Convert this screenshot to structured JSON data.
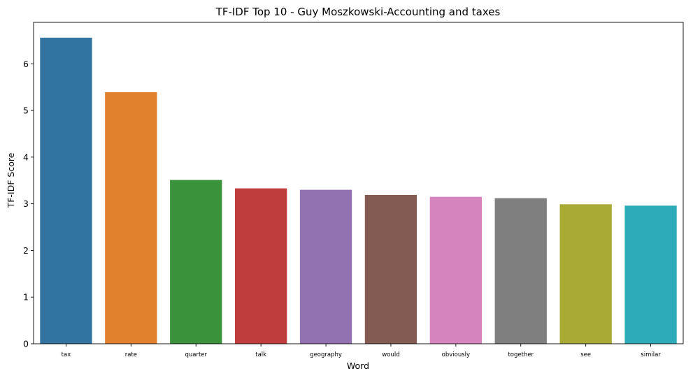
{
  "chart_data": {
    "type": "bar",
    "title": "TF-IDF Top 10 - Guy Moszkowski-Accounting and taxes",
    "xlabel": "Word",
    "ylabel": "TF-IDF Score",
    "categories": [
      "tax",
      "rate",
      "quarter",
      "talk",
      "geography",
      "would",
      "obviously",
      "together",
      "see",
      "similar"
    ],
    "values": [
      6.56,
      5.39,
      3.51,
      3.33,
      3.3,
      3.19,
      3.15,
      3.12,
      2.99,
      2.96
    ],
    "colors": [
      "#3274a1",
      "#e1812c",
      "#3a923a",
      "#c03d3e",
      "#9372b2",
      "#845b53",
      "#d684bd",
      "#7f7f7f",
      "#a9aa35",
      "#2eabb8"
    ],
    "yticks": [
      0,
      1,
      2,
      3,
      4,
      5,
      6
    ],
    "ylim": [
      0,
      6.888
    ],
    "grid": false,
    "legend": "none"
  }
}
